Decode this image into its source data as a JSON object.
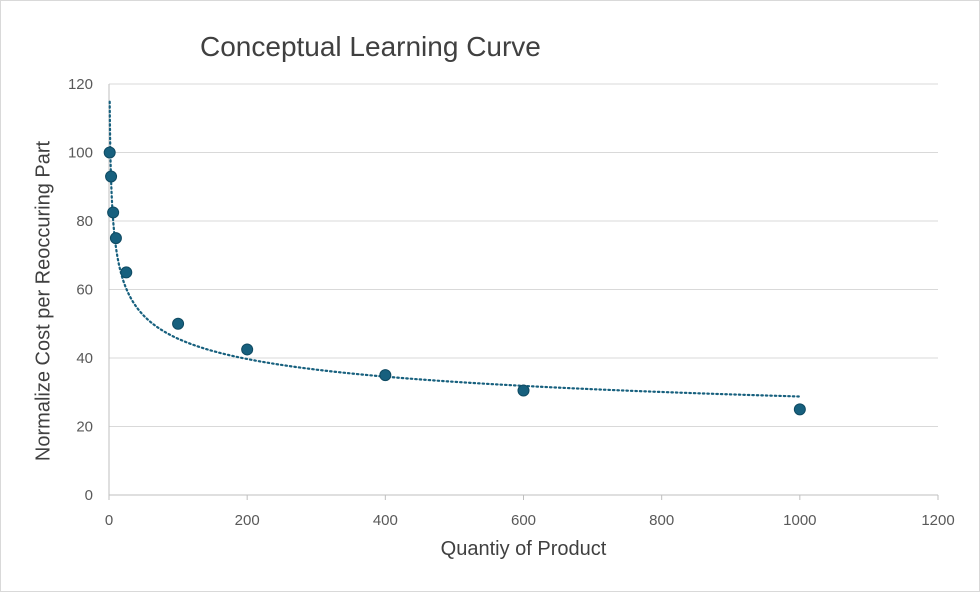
{
  "chart_data": {
    "type": "scatter",
    "title": "Conceptual Learning Curve",
    "xlabel": "Quantiy of Product",
    "ylabel": "Normalize Cost per Reoccuring Part",
    "xlim": [
      0,
      1200
    ],
    "ylim": [
      0,
      120
    ],
    "x_ticks": [
      "0",
      "200",
      "400",
      "600",
      "800",
      "1000",
      "1200"
    ],
    "y_ticks": [
      "0",
      "20",
      "40",
      "60",
      "80",
      "100",
      "120"
    ],
    "grid": "horizontal",
    "legend": "none",
    "series": [
      {
        "points": [
          {
            "x": 1,
            "y": 100
          },
          {
            "x": 3,
            "y": 93
          },
          {
            "x": 6,
            "y": 82.5
          },
          {
            "x": 10,
            "y": 75
          },
          {
            "x": 25,
            "y": 65
          },
          {
            "x": 100,
            "y": 50
          },
          {
            "x": 200,
            "y": 42.5
          },
          {
            "x": 400,
            "y": 35
          },
          {
            "x": 600,
            "y": 30.5
          },
          {
            "x": 1000,
            "y": 25
          }
        ],
        "trendline": "power, dotted",
        "color": "#17607e"
      }
    ],
    "colors": {
      "marker": "#17607e",
      "grid": "#d9d9d9",
      "axis": "#bfbfbf",
      "text": "#595959",
      "title": "#404040"
    }
  }
}
